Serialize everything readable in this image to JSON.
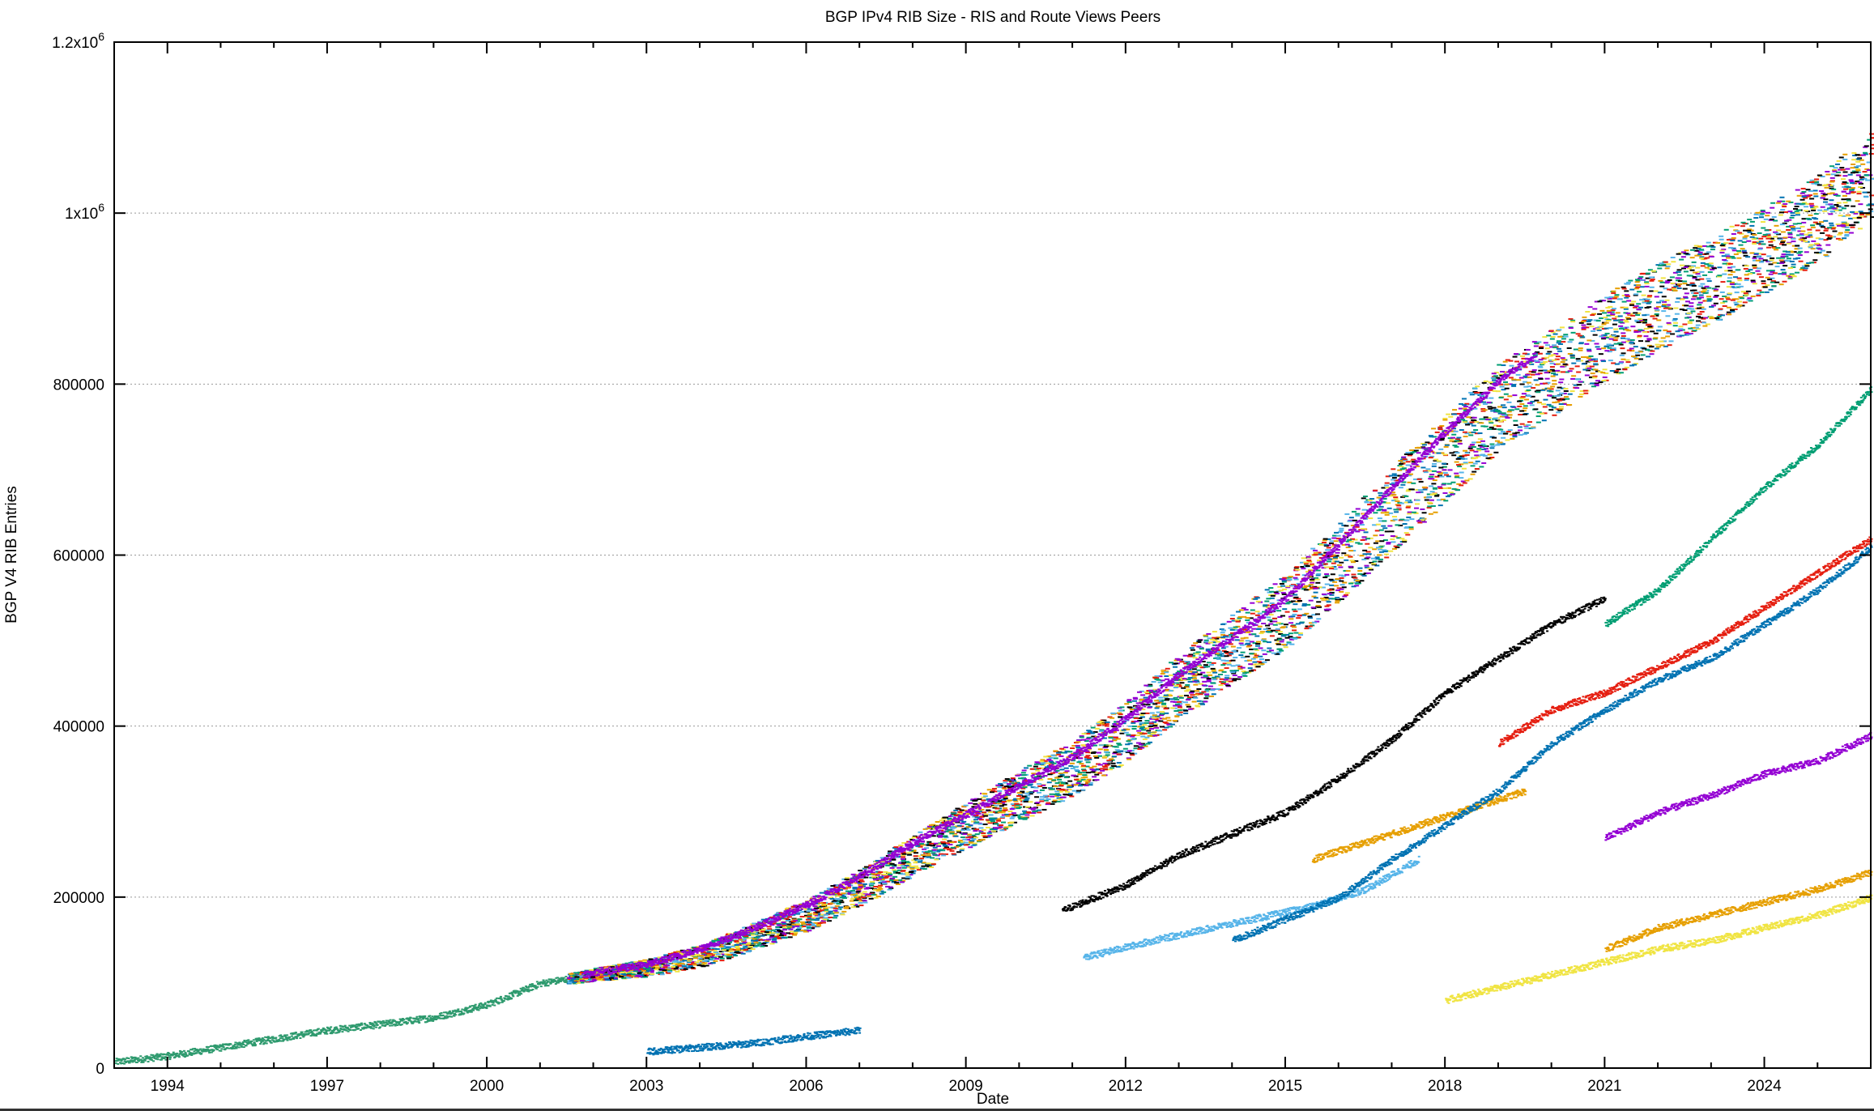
{
  "chart_data": {
    "type": "scatter",
    "title": "BGP IPv4 RIB Size - RIS and Route Views Peers",
    "xlabel": "Date",
    "ylabel": "BGP V4 RIB Entries",
    "xlim": [
      1993.0,
      2026.0
    ],
    "ylim": [
      0,
      1200000
    ],
    "x_ticks": [
      1994,
      1997,
      2000,
      2003,
      2006,
      2009,
      2012,
      2015,
      2018,
      2021,
      2024
    ],
    "x_tick_labels": [
      "1994",
      "1997",
      "2000",
      "2003",
      "2006",
      "2009",
      "2012",
      "2015",
      "2018",
      "2021",
      "2024"
    ],
    "y_ticks": [
      0,
      200000,
      400000,
      600000,
      800000,
      1000000,
      1200000
    ],
    "y_tick_labels": [
      {
        "base": "0",
        "exp": ""
      },
      {
        "base": "200000",
        "exp": ""
      },
      {
        "base": "400000",
        "exp": ""
      },
      {
        "base": "600000",
        "exp": ""
      },
      {
        "base": "800000",
        "exp": ""
      },
      {
        "base": "1x10",
        "exp": "6"
      },
      {
        "base": "1.2x10",
        "exp": "6"
      }
    ],
    "grid": "horizontal dotted",
    "legend": "none",
    "palette": [
      "#9400d3",
      "#009e73",
      "#56b4e9",
      "#e69f00",
      "#f0e442",
      "#0072b2",
      "#e51e10",
      "#000000"
    ],
    "series": [
      {
        "color": "#2e9a6e",
        "x": [
          1993.0,
          1994.0,
          1995,
          1996,
          1997,
          1998,
          1999,
          2000,
          2001,
          2001.5
        ],
        "y": [
          8000,
          15000,
          25000,
          35000,
          45000,
          52000,
          60000,
          75000,
          100000,
          105000
        ]
      },
      {
        "color": "band",
        "x": [
          2001.5,
          2002,
          2003,
          2004,
          2005,
          2006,
          2007,
          2008,
          2009,
          2010,
          2011,
          2012,
          2013,
          2014,
          2015,
          2016,
          2017,
          2018,
          2019,
          2020,
          2021,
          2022,
          2023,
          2024,
          2025,
          2026
        ],
        "y": [
          105000,
          110000,
          118000,
          132000,
          155000,
          180000,
          212000,
          250000,
          285000,
          320000,
          352000,
          395000,
          448000,
          492000,
          535000,
          595000,
          655000,
          715000,
          775000,
          815000,
          855000,
          892000,
          922000,
          958000,
          995000,
          1045000
        ]
      },
      {
        "color": "#9400d3",
        "x": [
          2001.8,
          2003,
          2004,
          2005,
          2006,
          2007,
          2008,
          2009,
          2010,
          2011,
          2012,
          2013,
          2014,
          2015,
          2016,
          2017,
          2018,
          2019,
          2019.7
        ],
        "y": [
          110000,
          122000,
          140000,
          165000,
          192000,
          225000,
          265000,
          298000,
          332000,
          365000,
          410000,
          462000,
          505000,
          550000,
          615000,
          680000,
          745000,
          805000,
          835000
        ]
      },
      {
        "color": "#000000",
        "x": [
          2010.8,
          2012,
          2013,
          2014,
          2015,
          2016,
          2017,
          2018,
          2019,
          2020,
          2021
        ],
        "y": [
          185000,
          215000,
          250000,
          275000,
          300000,
          340000,
          385000,
          440000,
          480000,
          520000,
          550000
        ]
      },
      {
        "color": "#e69f00",
        "x": [
          2015.5,
          2016.5,
          2017.5,
          2018.5,
          2019.5
        ],
        "y": [
          245000,
          265000,
          285000,
          305000,
          325000
        ]
      },
      {
        "color": "#56b4e9",
        "x": [
          2011.2,
          2012.5,
          2014,
          2015.5,
          2016.5,
          2017.5
        ],
        "y": [
          130000,
          150000,
          170000,
          190000,
          210000,
          245000
        ]
      },
      {
        "color": "#0072b2",
        "x": [
          2014,
          2015,
          2016,
          2017,
          2018,
          2019,
          2020,
          2021,
          2022,
          2023,
          2024,
          2025,
          2026
        ],
        "y": [
          150000,
          175000,
          200000,
          245000,
          285000,
          325000,
          380000,
          420000,
          455000,
          480000,
          520000,
          560000,
          610000
        ]
      },
      {
        "color": "#e51e10",
        "x": [
          2019,
          2020,
          2021,
          2022,
          2023,
          2024,
          2025,
          2026
        ],
        "y": [
          380000,
          420000,
          440000,
          470000,
          500000,
          540000,
          580000,
          620000
        ]
      },
      {
        "color": "#009e73",
        "x": [
          2021,
          2022,
          2023,
          2024,
          2025,
          2026
        ],
        "y": [
          520000,
          560000,
          620000,
          680000,
          730000,
          795000
        ]
      },
      {
        "color": "#e69f00",
        "x": [
          2021,
          2022,
          2023,
          2024,
          2025,
          2026
        ],
        "y": [
          140000,
          165000,
          180000,
          195000,
          210000,
          230000
        ]
      },
      {
        "color": "#9400d3",
        "x": [
          2021,
          2022,
          2023,
          2024,
          2025,
          2026
        ],
        "y": [
          270000,
          300000,
          320000,
          345000,
          360000,
          390000
        ]
      },
      {
        "color": "#f0e442",
        "x": [
          2018,
          2019,
          2020,
          2021,
          2022,
          2023,
          2024,
          2025,
          2026
        ],
        "y": [
          80000,
          95000,
          110000,
          125000,
          140000,
          150000,
          165000,
          180000,
          200000
        ]
      },
      {
        "color": "#0072b2",
        "x": [
          2003,
          2004,
          2005,
          2006,
          2007
        ],
        "y": [
          20000,
          25000,
          30000,
          38000,
          45000
        ]
      }
    ]
  }
}
